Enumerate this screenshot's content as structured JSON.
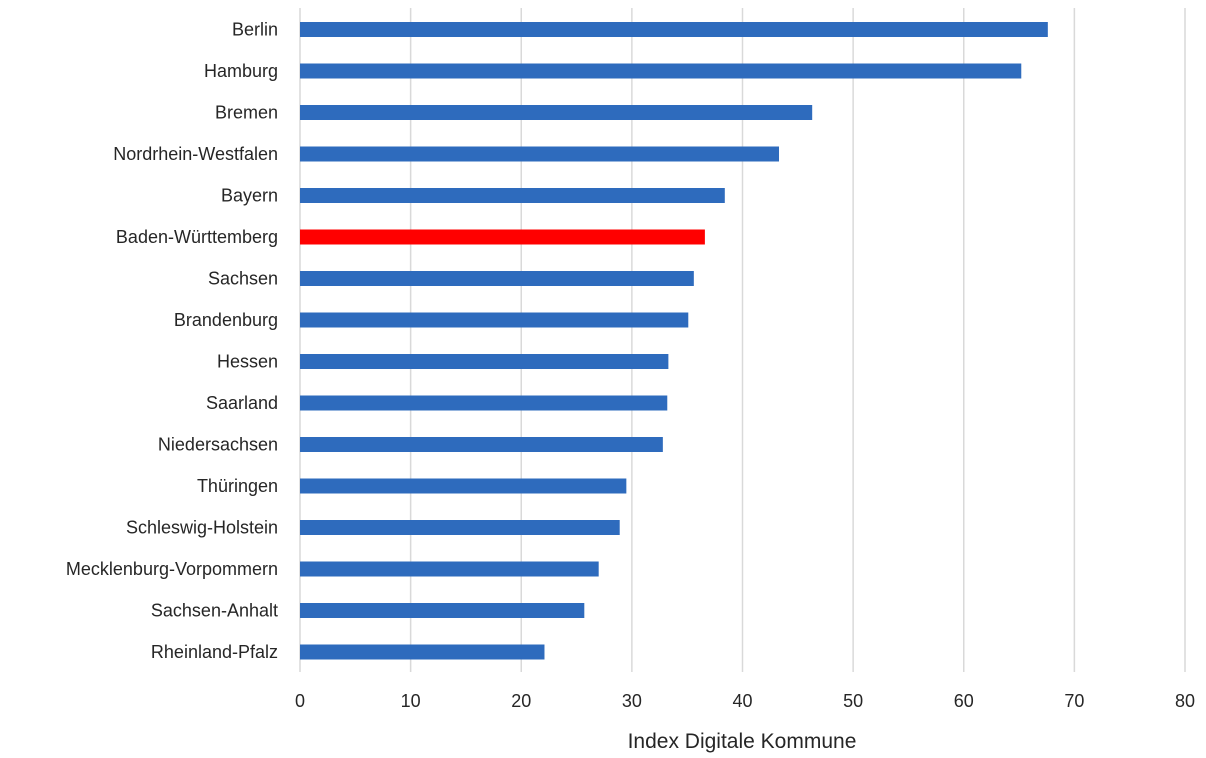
{
  "chart_data": {
    "type": "bar",
    "orientation": "horizontal",
    "title": "",
    "xlabel": "Index Digitale Kommune",
    "ylabel": "",
    "xlim": [
      0,
      80
    ],
    "xticks": [
      "0",
      "10",
      "20",
      "30",
      "40",
      "50",
      "60",
      "70",
      "80"
    ],
    "grid": "vertical",
    "legend": "none",
    "colors": {
      "default_bar": "#2e6bbd",
      "highlight_bar": "#ff0000",
      "gridline": "#d9d9d9"
    },
    "highlight": "Baden-Württemberg",
    "categories": [
      "Berlin",
      "Hamburg",
      "Bremen",
      "Nordrhein-Westfalen",
      "Bayern",
      "Baden-Württemberg",
      "Sachsen",
      "Brandenburg",
      "Hessen",
      "Saarland",
      "Niedersachsen",
      "Thüringen",
      "Schleswig-Holstein",
      "Mecklenburg-Vorpommern",
      "Sachsen-Anhalt",
      "Rheinland-Pfalz"
    ],
    "values": [
      67.6,
      65.2,
      46.3,
      43.3,
      38.4,
      36.6,
      35.6,
      35.1,
      33.3,
      33.2,
      32.8,
      29.5,
      28.9,
      27.0,
      25.7,
      22.1
    ]
  }
}
